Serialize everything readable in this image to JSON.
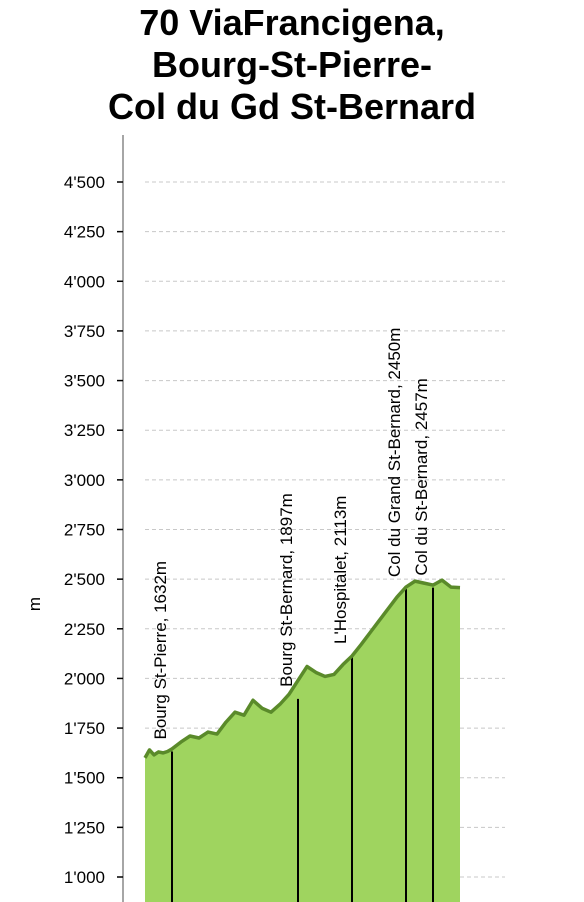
{
  "chart_data": {
    "type": "area",
    "title_lines": [
      "70 ViaFrancigena,",
      "Bourg-St-Pierre-",
      "Col du Gd St-Bernard"
    ],
    "ylabel": "m",
    "xlabel": "",
    "ylim": [
      950,
      4550
    ],
    "yticks": [
      1000,
      1250,
      1500,
      1750,
      2000,
      2250,
      2500,
      2750,
      3000,
      3250,
      3500,
      3750,
      4000,
      4250,
      4500
    ],
    "ytick_labels": [
      "1'000",
      "1'250",
      "1'500",
      "1'750",
      "2'000",
      "2'250",
      "2'500",
      "2'750",
      "3'000",
      "3'250",
      "3'500",
      "3'750",
      "4'000",
      "4'250",
      "4'500"
    ],
    "grid": true,
    "fill_color": "#9fd45f",
    "line_color": "#5a8a2a",
    "x": [
      0,
      0.2,
      0.4,
      0.6,
      0.8,
      1.0,
      1.2,
      1.6,
      2.0,
      2.4,
      2.8,
      3.2,
      3.6,
      4.0,
      4.4,
      4.8,
      5.2,
      5.6,
      6.0,
      6.4,
      6.8,
      7.2,
      7.6,
      8.0,
      8.4,
      8.8,
      9.2,
      9.6,
      10.0,
      10.4,
      10.8,
      11.2,
      11.6,
      12.0,
      12.4,
      12.8,
      13.2,
      13.6,
      14.0
    ],
    "y": [
      1600,
      1640,
      1615,
      1630,
      1625,
      1632,
      1645,
      1680,
      1710,
      1700,
      1730,
      1720,
      1780,
      1830,
      1815,
      1890,
      1850,
      1830,
      1870,
      1920,
      1990,
      2060,
      2030,
      2010,
      2020,
      2070,
      2113,
      2170,
      2230,
      2290,
      2350,
      2410,
      2460,
      2490,
      2480,
      2470,
      2495,
      2460,
      2457
    ],
    "annotations": [
      {
        "x": 1.2,
        "elev": 1632,
        "label": "Bourg St-Pierre, 1632m"
      },
      {
        "x": 6.8,
        "elev": 1897,
        "label": "Bourg St-Bernard, 1897m"
      },
      {
        "x": 9.2,
        "elev": 2113,
        "label": "L'Hospitalet, 2113m"
      },
      {
        "x": 11.6,
        "elev": 2450,
        "label": "Col du Grand St-Bernard, 2450m"
      },
      {
        "x": 12.8,
        "elev": 2457,
        "label": "Col du St-Bernard, 2457m"
      }
    ]
  }
}
